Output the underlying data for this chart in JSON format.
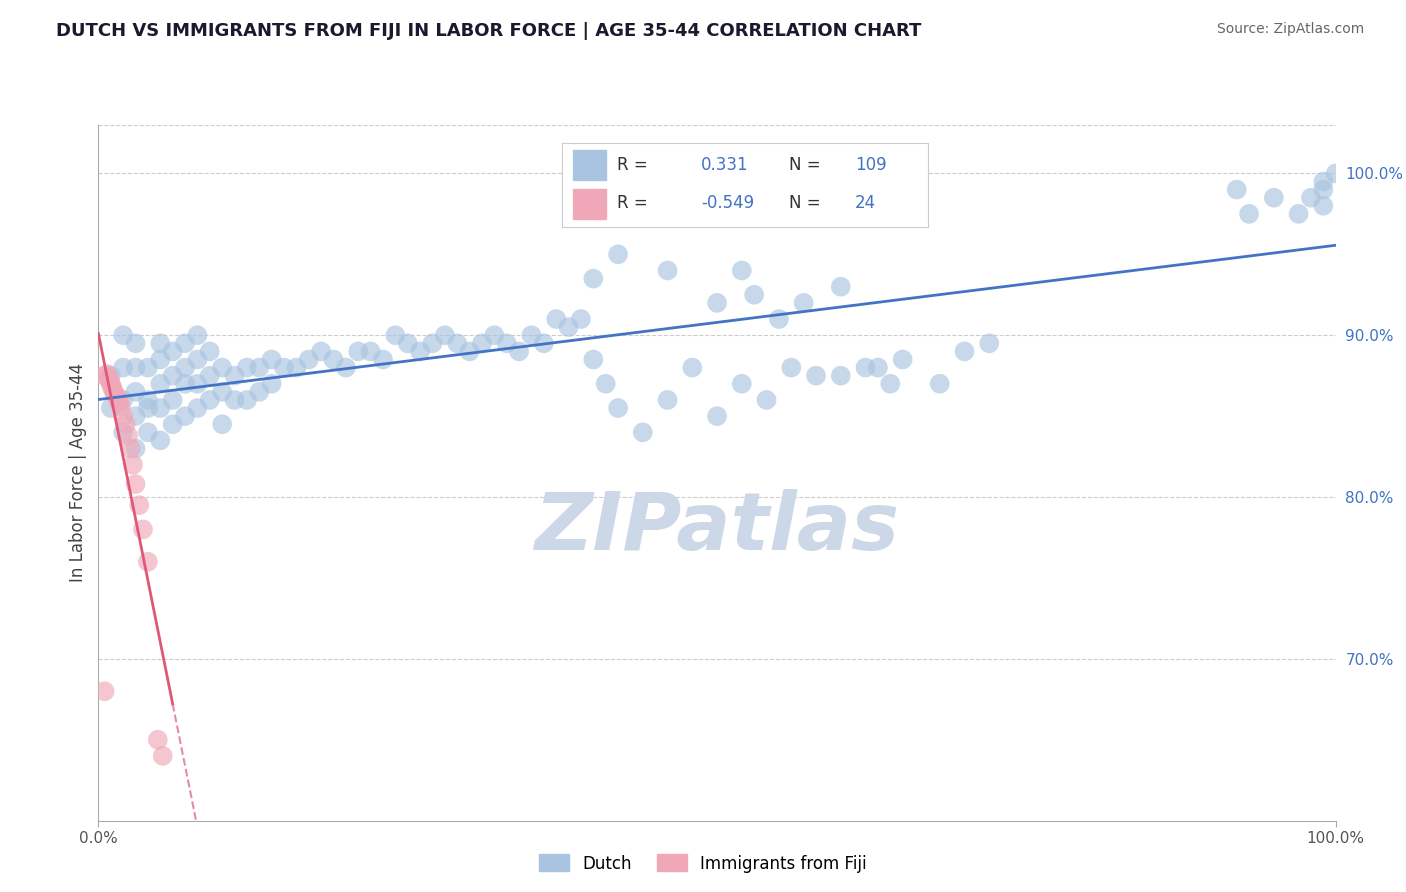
{
  "title": "DUTCH VS IMMIGRANTS FROM FIJI IN LABOR FORCE | AGE 35-44 CORRELATION CHART",
  "source": "Source: ZipAtlas.com",
  "ylabel": "In Labor Force | Age 35-44",
  "xlim": [
    0.0,
    1.0
  ],
  "ylim": [
    0.6,
    1.03
  ],
  "y_ticks_right": [
    0.7,
    0.8,
    0.9,
    1.0
  ],
  "y_tick_labels_right": [
    "70.0%",
    "80.0%",
    "90.0%",
    "100.0%"
  ],
  "background_color": "#ffffff",
  "grid_color": "#cccccc",
  "dutch_color": "#a8c4e0",
  "fiji_color": "#f0a8b8",
  "dutch_line_color": "#4472c4",
  "fiji_line_color": "#e05878",
  "watermark_color": "#ccd8e8",
  "R_dutch": 0.331,
  "N_dutch": 109,
  "R_fiji": -0.549,
  "N_fiji": 24,
  "legend_label_dutch": "Dutch",
  "legend_label_fiji": "Immigrants from Fiji",
  "dutch_x": [
    0.01,
    0.01,
    0.02,
    0.02,
    0.02,
    0.02,
    0.03,
    0.03,
    0.03,
    0.03,
    0.03,
    0.04,
    0.04,
    0.04,
    0.04,
    0.05,
    0.05,
    0.05,
    0.05,
    0.05,
    0.06,
    0.06,
    0.06,
    0.06,
    0.07,
    0.07,
    0.07,
    0.07,
    0.08,
    0.08,
    0.08,
    0.08,
    0.09,
    0.09,
    0.09,
    0.1,
    0.1,
    0.1,
    0.11,
    0.11,
    0.12,
    0.12,
    0.13,
    0.13,
    0.14,
    0.14,
    0.15,
    0.16,
    0.17,
    0.18,
    0.19,
    0.2,
    0.21,
    0.22,
    0.23,
    0.24,
    0.25,
    0.26,
    0.27,
    0.28,
    0.29,
    0.3,
    0.31,
    0.32,
    0.33,
    0.34,
    0.35,
    0.36,
    0.37,
    0.38,
    0.39,
    0.4,
    0.41,
    0.42,
    0.44,
    0.46,
    0.48,
    0.5,
    0.52,
    0.54,
    0.56,
    0.58,
    0.6,
    0.62,
    0.64,
    0.4,
    0.42,
    0.46,
    0.5,
    0.52,
    0.53,
    0.55,
    0.57,
    0.6,
    0.63,
    0.65,
    0.68,
    0.7,
    0.72,
    0.92,
    0.93,
    0.95,
    0.97,
    0.98,
    0.99,
    0.99,
    1.0,
    0.99
  ],
  "dutch_y": [
    0.855,
    0.875,
    0.84,
    0.86,
    0.88,
    0.9,
    0.83,
    0.85,
    0.865,
    0.88,
    0.895,
    0.84,
    0.86,
    0.88,
    0.855,
    0.835,
    0.855,
    0.87,
    0.885,
    0.895,
    0.845,
    0.86,
    0.875,
    0.89,
    0.85,
    0.87,
    0.88,
    0.895,
    0.855,
    0.87,
    0.885,
    0.9,
    0.86,
    0.875,
    0.89,
    0.845,
    0.865,
    0.88,
    0.86,
    0.875,
    0.86,
    0.88,
    0.865,
    0.88,
    0.87,
    0.885,
    0.88,
    0.88,
    0.885,
    0.89,
    0.885,
    0.88,
    0.89,
    0.89,
    0.885,
    0.9,
    0.895,
    0.89,
    0.895,
    0.9,
    0.895,
    0.89,
    0.895,
    0.9,
    0.895,
    0.89,
    0.9,
    0.895,
    0.91,
    0.905,
    0.91,
    0.885,
    0.87,
    0.855,
    0.84,
    0.86,
    0.88,
    0.85,
    0.87,
    0.86,
    0.88,
    0.875,
    0.875,
    0.88,
    0.87,
    0.935,
    0.95,
    0.94,
    0.92,
    0.94,
    0.925,
    0.91,
    0.92,
    0.93,
    0.88,
    0.885,
    0.87,
    0.89,
    0.895,
    0.99,
    0.975,
    0.985,
    0.975,
    0.985,
    0.99,
    0.995,
    1.0,
    0.98
  ],
  "fiji_x": [
    0.005,
    0.007,
    0.008,
    0.009,
    0.01,
    0.011,
    0.012,
    0.013,
    0.015,
    0.016,
    0.017,
    0.018,
    0.02,
    0.022,
    0.024,
    0.026,
    0.028,
    0.03,
    0.033,
    0.036,
    0.04,
    0.005,
    0.048,
    0.052
  ],
  "fiji_y": [
    0.875,
    0.876,
    0.874,
    0.872,
    0.87,
    0.868,
    0.866,
    0.864,
    0.862,
    0.86,
    0.858,
    0.856,
    0.85,
    0.845,
    0.838,
    0.83,
    0.82,
    0.808,
    0.795,
    0.78,
    0.76,
    0.68,
    0.65,
    0.64
  ]
}
